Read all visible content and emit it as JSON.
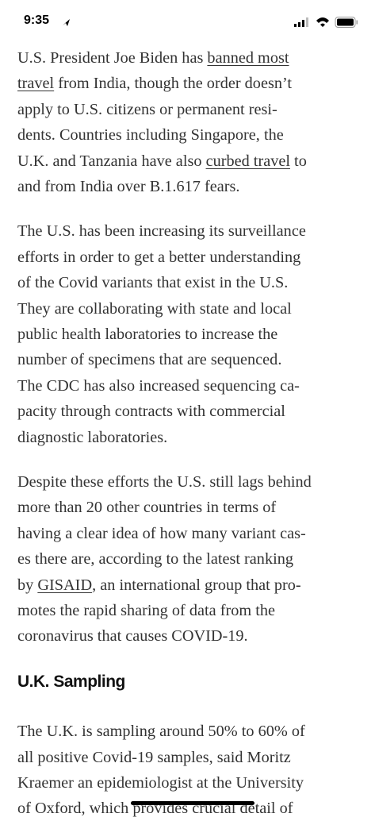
{
  "status_bar": {
    "time": "9:35"
  },
  "article": {
    "paragraphs": [
      {
        "lines": [
          [
            {
              "text": "U.S. President Joe Biden has "
            },
            {
              "text": "banned most",
              "link": true
            }
          ],
          [
            {
              "text": "travel",
              "link": true
            },
            {
              "text": " from India, though the order doesn’t"
            }
          ],
          [
            {
              "text": "apply to U.S. citizens or permanent resi-"
            }
          ],
          [
            {
              "text": "dents. Countries including Singapore, the"
            }
          ],
          [
            {
              "text": "U.K. and Tanzania have also "
            },
            {
              "text": "curbed travel",
              "link": true
            },
            {
              "text": " to"
            }
          ],
          [
            {
              "text": "and from India over B.1.617 fears."
            }
          ]
        ]
      },
      {
        "lines": [
          [
            {
              "text": "The U.S. has been increasing its surveillance"
            }
          ],
          [
            {
              "text": "efforts in order to get a better understanding"
            }
          ],
          [
            {
              "text": "of the Covid variants that exist in the U.S."
            }
          ],
          [
            {
              "text": "They are collaborating with state and local"
            }
          ],
          [
            {
              "text": "public health laboratories to increase the"
            }
          ],
          [
            {
              "text": "number of specimens that are sequenced."
            }
          ],
          [
            {
              "text": "The CDC has also increased sequencing ca-"
            }
          ],
          [
            {
              "text": "pacity through contracts with commercial"
            }
          ],
          [
            {
              "text": "diagnostic laboratories."
            }
          ]
        ]
      },
      {
        "lines": [
          [
            {
              "text": "Despite these efforts the U.S. still lags behind"
            }
          ],
          [
            {
              "text": "more than 20 other countries in terms of"
            }
          ],
          [
            {
              "text": "having a clear idea of how many variant cas-"
            }
          ],
          [
            {
              "text": "es there are, according to the latest ranking"
            }
          ],
          [
            {
              "text": "by "
            },
            {
              "text": "GISAID",
              "link": true
            },
            {
              "text": ", an international group that pro-"
            }
          ],
          [
            {
              "text": "motes the rapid sharing of data from the"
            }
          ],
          [
            {
              "text": "coronavirus that causes COVID-19."
            }
          ]
        ]
      }
    ],
    "heading": "U.K. Sampling",
    "after_heading": [
      {
        "lines": [
          [
            {
              "text": "The U.K. is sampling around 50% to 60% of"
            }
          ],
          [
            {
              "text": "all positive Covid-19 samples, said Moritz"
            }
          ],
          [
            {
              "text": "Kraemer an epidemiologist at the University"
            }
          ],
          [
            {
              "text": "of Oxford, which provides crucial detail of"
            }
          ]
        ]
      }
    ]
  }
}
